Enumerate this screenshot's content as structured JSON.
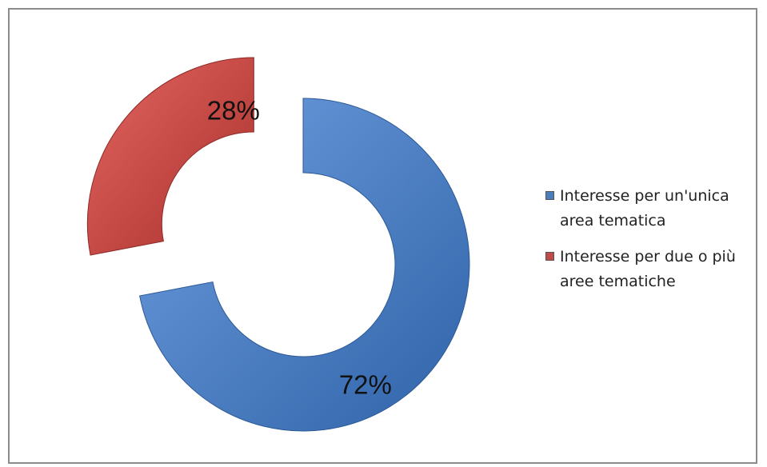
{
  "chart_data": {
    "type": "pie",
    "style": "exploded-donut",
    "categories": [
      "Interesse per un'unica area tematica",
      "Interesse per due o più aree tematiche"
    ],
    "values": [
      72,
      28
    ],
    "value_unit": "%",
    "data_labels": [
      "72%",
      "28%"
    ],
    "colors": [
      "#4a7ebb",
      "#be4b48"
    ],
    "legend_position": "right",
    "title": ""
  },
  "legend": {
    "items": [
      {
        "line1": "Interesse per un'unica",
        "line2": "area tematica"
      },
      {
        "line1": "Interesse per due o più",
        "line2": "aree tematiche"
      }
    ]
  }
}
